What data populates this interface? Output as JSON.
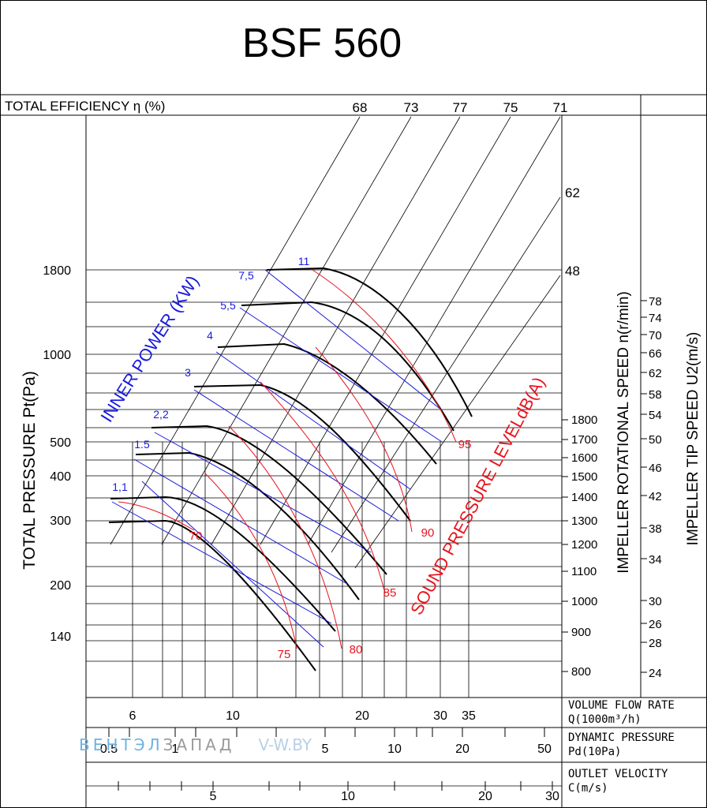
{
  "chart_data": {
    "type": "line",
    "title": "BSF 560",
    "efficiency_label": "TOTAL EFFICIENCY η (%)",
    "efficiency_values": [
      "68",
      "73",
      "77",
      "75",
      "71"
    ],
    "efficiency_side_values": [
      "62",
      "48"
    ],
    "ylabel": "TOTAL PRESSURE Pt(Pa)",
    "y_ticks": [
      "1800",
      "1000",
      "500",
      "400",
      "300",
      "200",
      "140"
    ],
    "xlabel_flow": "VOLUME FLOW RATE",
    "xlabel_flow_unit": "Q(1000m³/h)",
    "x_ticks_flow": [
      "6",
      "10",
      "20",
      "30",
      "35"
    ],
    "xlabel_dynamic": "DYNAMIC PRESSURE",
    "xlabel_dynamic_unit": "Pd(10Pa)",
    "x_ticks_dynamic": [
      "0.5",
      "1",
      "5",
      "10",
      "20",
      "50"
    ],
    "xlabel_velocity": "OUTLET VELOCITY",
    "xlabel_velocity_unit": "C(m/s)",
    "x_ticks_velocity": [
      "5",
      "10",
      "20",
      "30"
    ],
    "speed_label": "IMPELLER ROTATIONAL SPEED n(r/min)",
    "speed_ticks": [
      "1800",
      "1700",
      "1600",
      "1500",
      "1400",
      "1300",
      "1200",
      "1100",
      "1000",
      "900",
      "800"
    ],
    "tip_label": "IMPELLER TIP SPEED U2(m/s)",
    "tip_ticks": [
      "78",
      "74",
      "70",
      "66",
      "62",
      "58",
      "54",
      "50",
      "46",
      "42",
      "38",
      "34",
      "30",
      "26",
      "28",
      "24"
    ],
    "power_label": "INNER POWER (KW)",
    "power_values": [
      "11",
      "7,5",
      "5,5",
      "4",
      "3",
      "2,2",
      "1.5",
      "1,1"
    ],
    "sound_label": "SOUND PRESSURE LEVELdB(A)",
    "sound_values": [
      "95",
      "90",
      "85",
      "80",
      "75",
      "70"
    ],
    "watermark_a": "ВЕНТЭЛ",
    "watermark_b": "ЗАПАД",
    "watermark_c": "V-W.BY",
    "colors": {
      "power": "#1a1adc",
      "sound": "#e8141e",
      "curve": "#000000"
    }
  }
}
